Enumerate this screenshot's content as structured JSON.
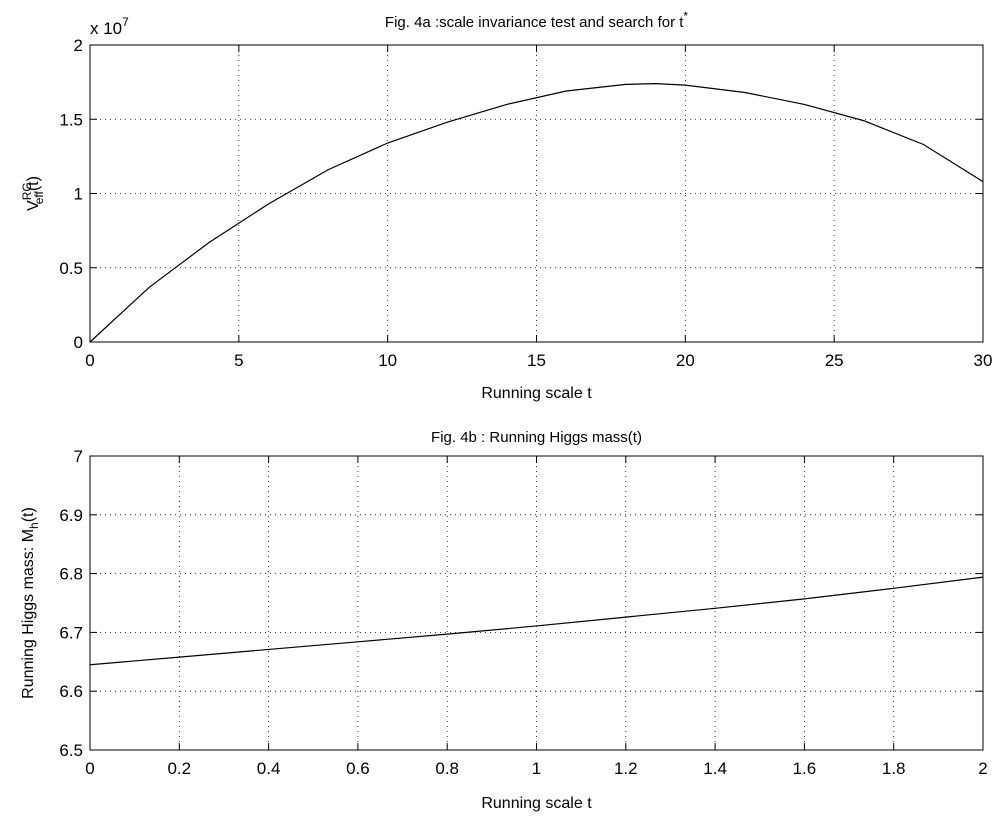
{
  "chart_data": [
    {
      "type": "line",
      "title": "Fig. 4a :scale invariance test and search for t",
      "title_superscript": "*",
      "xlabel": "Running  scale t",
      "ylabel": "V",
      "ylabel_sup": "RG",
      "ylabel_sub": "eff",
      "ylabel_suffix": "(t)",
      "y_multiplier": "x 10",
      "y_multiplier_exp": "7",
      "xlim": [
        0,
        30
      ],
      "ylim": [
        0,
        2
      ],
      "xticks": [
        0,
        5,
        10,
        15,
        20,
        25,
        30
      ],
      "yticks": [
        0,
        0.5,
        1,
        1.5,
        2
      ],
      "xtick_labels": [
        "0",
        "5",
        "10",
        "15",
        "20",
        "25",
        "30"
      ],
      "ytick_labels": [
        "0",
        "0.5",
        "1",
        "1.5",
        "2"
      ],
      "grid": true,
      "series": [
        {
          "x": [
            0,
            2,
            4,
            6,
            8,
            10,
            12,
            14,
            16,
            18,
            19,
            20,
            22,
            24,
            26,
            28,
            30
          ],
          "values": [
            0.0,
            0.37,
            0.67,
            0.93,
            1.16,
            1.34,
            1.48,
            1.6,
            1.69,
            1.735,
            1.74,
            1.73,
            1.68,
            1.6,
            1.49,
            1.33,
            1.08
          ]
        }
      ]
    },
    {
      "type": "line",
      "title": "Fig. 4b :  Running  Higgs mass(t)",
      "xlabel": "Running  scale t",
      "ylabel": "Running Higgs mass: M",
      "ylabel_sub": "h",
      "ylabel_suffix": "(t)",
      "xlim": [
        0,
        2
      ],
      "ylim": [
        6.5,
        7
      ],
      "xticks": [
        0,
        0.2,
        0.4,
        0.6,
        0.8,
        1,
        1.2,
        1.4,
        1.6,
        1.8,
        2
      ],
      "yticks": [
        6.5,
        6.6,
        6.7,
        6.8,
        6.9,
        7
      ],
      "xtick_labels": [
        "0",
        "0.2",
        "0.4",
        "0.6",
        "0.8",
        "1",
        "1.2",
        "1.4",
        "1.6",
        "1.8",
        "2"
      ],
      "ytick_labels": [
        "6.5",
        "6.6",
        "6.7",
        "6.8",
        "6.9",
        "7"
      ],
      "grid": true,
      "series": [
        {
          "x": [
            0,
            0.2,
            0.4,
            0.6,
            0.8,
            1.0,
            1.2,
            1.4,
            1.6,
            1.8,
            2.0
          ],
          "values": [
            6.645,
            6.658,
            6.671,
            6.684,
            6.697,
            6.711,
            6.726,
            6.741,
            6.757,
            6.775,
            6.794
          ]
        }
      ]
    }
  ]
}
